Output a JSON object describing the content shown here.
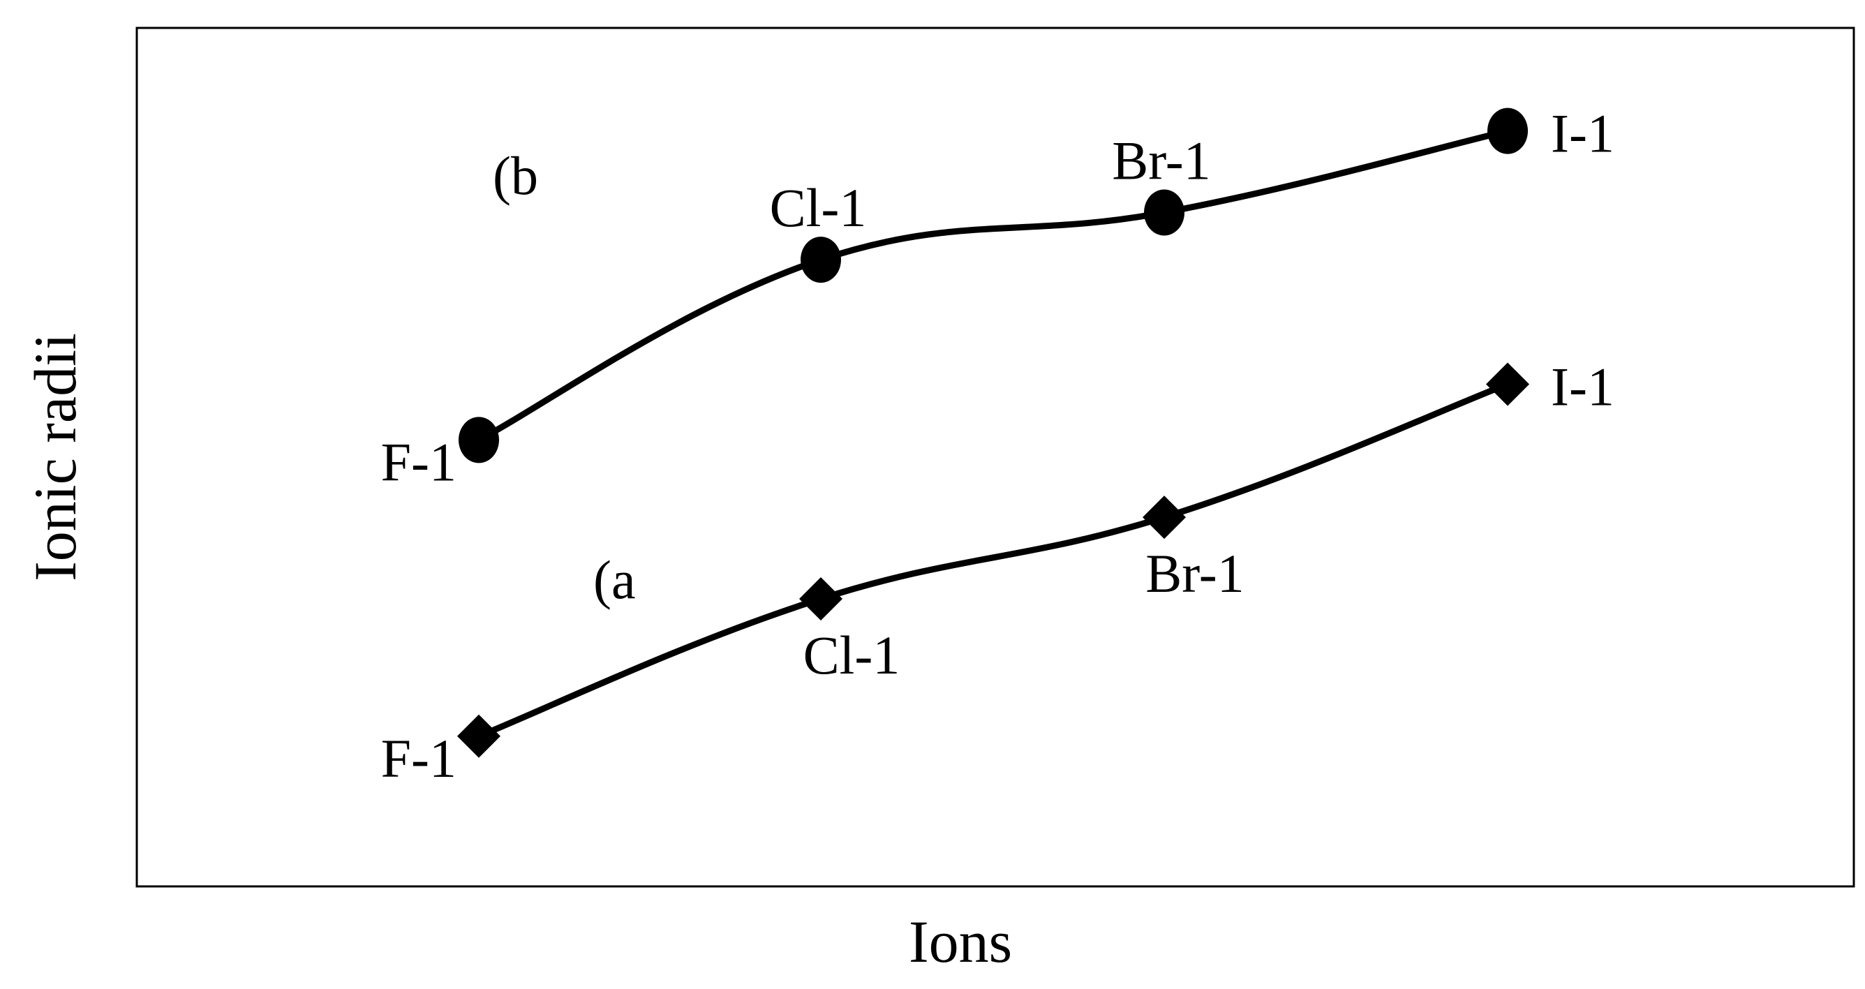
{
  "chart_data": {
    "type": "line",
    "title": "",
    "xlabel": "Ions",
    "ylabel": "Ionic radii",
    "categories": [
      "F-1",
      "Cl-1",
      "Br-1",
      "I-1"
    ],
    "ylim": [
      0,
      100
    ],
    "grid": false,
    "legend": "none",
    "ticks": "none",
    "series": [
      {
        "name": "(b",
        "marker": "circle",
        "values": [
          52,
          73,
          78.5,
          88
        ],
        "labels": [
          "F-1",
          "Cl-1",
          "Br-1",
          "I-1"
        ],
        "label_positions": [
          "left",
          "above",
          "above",
          "right"
        ]
      },
      {
        "name": "(a",
        "marker": "diamond",
        "values": [
          17.5,
          33.5,
          43,
          58.5
        ],
        "labels": [
          "F-1",
          "Cl-1",
          "Br-1",
          "I-1"
        ],
        "label_positions": [
          "left",
          "below",
          "below",
          "right"
        ]
      }
    ],
    "colors": {
      "line": "#000000",
      "marker": "#000000",
      "frame": "#000000",
      "background": "#ffffff"
    }
  }
}
